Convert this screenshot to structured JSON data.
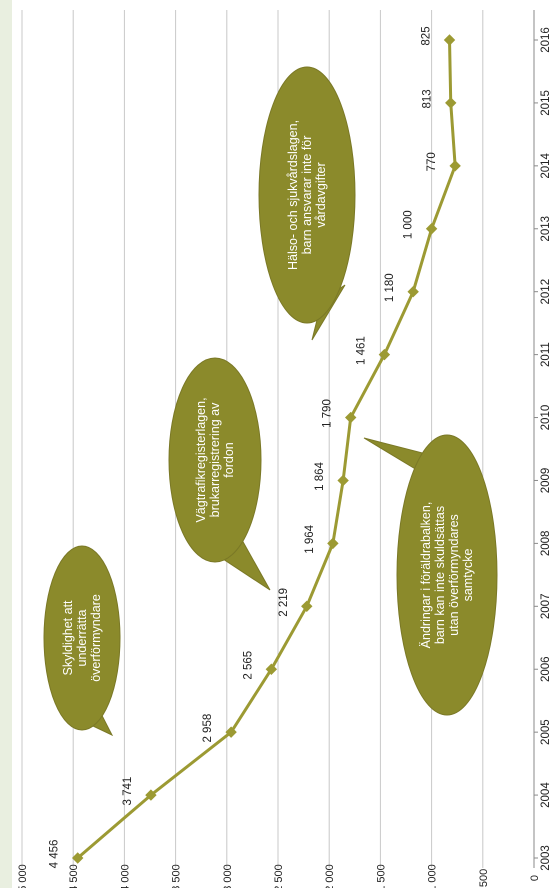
{
  "chart_data": {
    "type": "line",
    "orientation": "rotated-90-clockwise",
    "x": [
      "2003",
      "2004",
      "2005",
      "2006",
      "2007",
      "2008",
      "2009",
      "2010",
      "2011",
      "2012",
      "2013",
      "2014",
      "2015",
      "2016"
    ],
    "series": [
      {
        "values": [
          4456,
          3741,
          2958,
          2565,
          2219,
          1964,
          1864,
          1790,
          1461,
          1180,
          1000,
          770,
          813,
          825
        ],
        "data_labels": [
          "4 456",
          "3 741",
          "2 958",
          "2 565",
          "2 219",
          "1 964",
          "1 864",
          "1 790",
          "1 461",
          "1 180",
          "1 000",
          "770",
          "813",
          "825"
        ]
      }
    ],
    "ylim": [
      0,
      5000
    ],
    "yticks": [
      {
        "value": 0,
        "label": "0"
      },
      {
        "value": 500,
        "label": "500"
      },
      {
        "value": 1000,
        "label": "1 000"
      },
      {
        "value": 1500,
        "label": "1 500"
      },
      {
        "value": 2000,
        "label": "2 000"
      },
      {
        "value": 2500,
        "label": "2 500"
      },
      {
        "value": 3000,
        "label": "3 000"
      },
      {
        "value": 3500,
        "label": "3 500"
      },
      {
        "value": 4000,
        "label": "4 000"
      },
      {
        "value": 4500,
        "label": "4 500"
      },
      {
        "value": 5000,
        "label": "5 000"
      }
    ],
    "grid": true,
    "annotations": [
      {
        "year": "2004",
        "lines": [
          "Skyldighet att",
          "underrätta",
          "överförmyndare"
        ]
      },
      {
        "year": "2006",
        "lines": [
          "Vägtrafikregisterlagen,",
          "brukarregistrering av",
          "fordon"
        ]
      },
      {
        "year": "2009",
        "lines": [
          "Ändringar i föräldrabalken,",
          "barn kan inte skuldsättas",
          "utan överförmyndares",
          "samtycke"
        ]
      },
      {
        "year": "2010",
        "lines": [
          "Hälso- och sjukvårdslagen,",
          "barn ansvarar inte för",
          "vårdavgifter"
        ]
      }
    ],
    "colors": {
      "line": "#9c9a33",
      "bubble": "#8b8a2b",
      "bubble_border": "#7a7826",
      "grid": "#c8c8c8",
      "side_strip": "#e9efe0"
    }
  }
}
